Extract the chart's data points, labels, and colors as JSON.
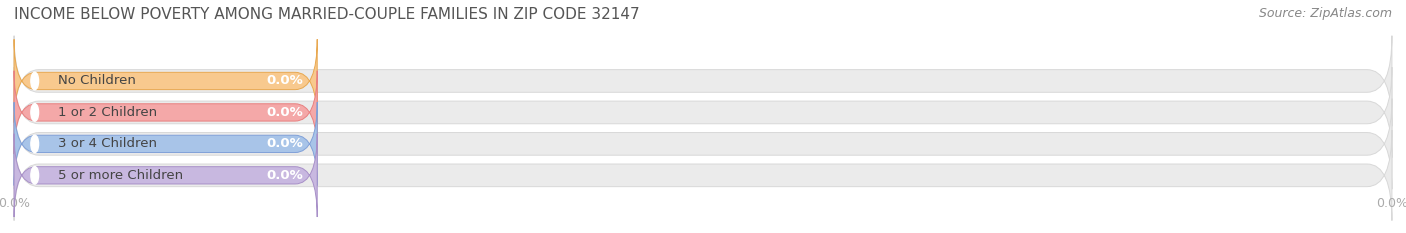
{
  "title": "INCOME BELOW POVERTY AMONG MARRIED-COUPLE FAMILIES IN ZIP CODE 32147",
  "source": "Source: ZipAtlas.com",
  "categories": [
    "No Children",
    "1 or 2 Children",
    "3 or 4 Children",
    "5 or more Children"
  ],
  "values": [
    0.0,
    0.0,
    0.0,
    0.0
  ],
  "bar_colors": [
    "#f8c98e",
    "#f4a8a8",
    "#a8c4e8",
    "#c8b8e0"
  ],
  "bar_edge_colors": [
    "#e8a850",
    "#e88080",
    "#80a0d8",
    "#a890c8"
  ],
  "background_color": "#ffffff",
  "bar_bg_color": "#ebebeb",
  "bar_bg_edge_color": "#d8d8d8",
  "title_fontsize": 11,
  "source_fontsize": 9,
  "label_fontsize": 9.5,
  "value_fontsize": 9.5,
  "tick_label_color": "#aaaaaa",
  "tick_label_fontsize": 9,
  "label_text_color": "#444444",
  "value_text_color": "#ffffff",
  "grid_color": "#cccccc"
}
